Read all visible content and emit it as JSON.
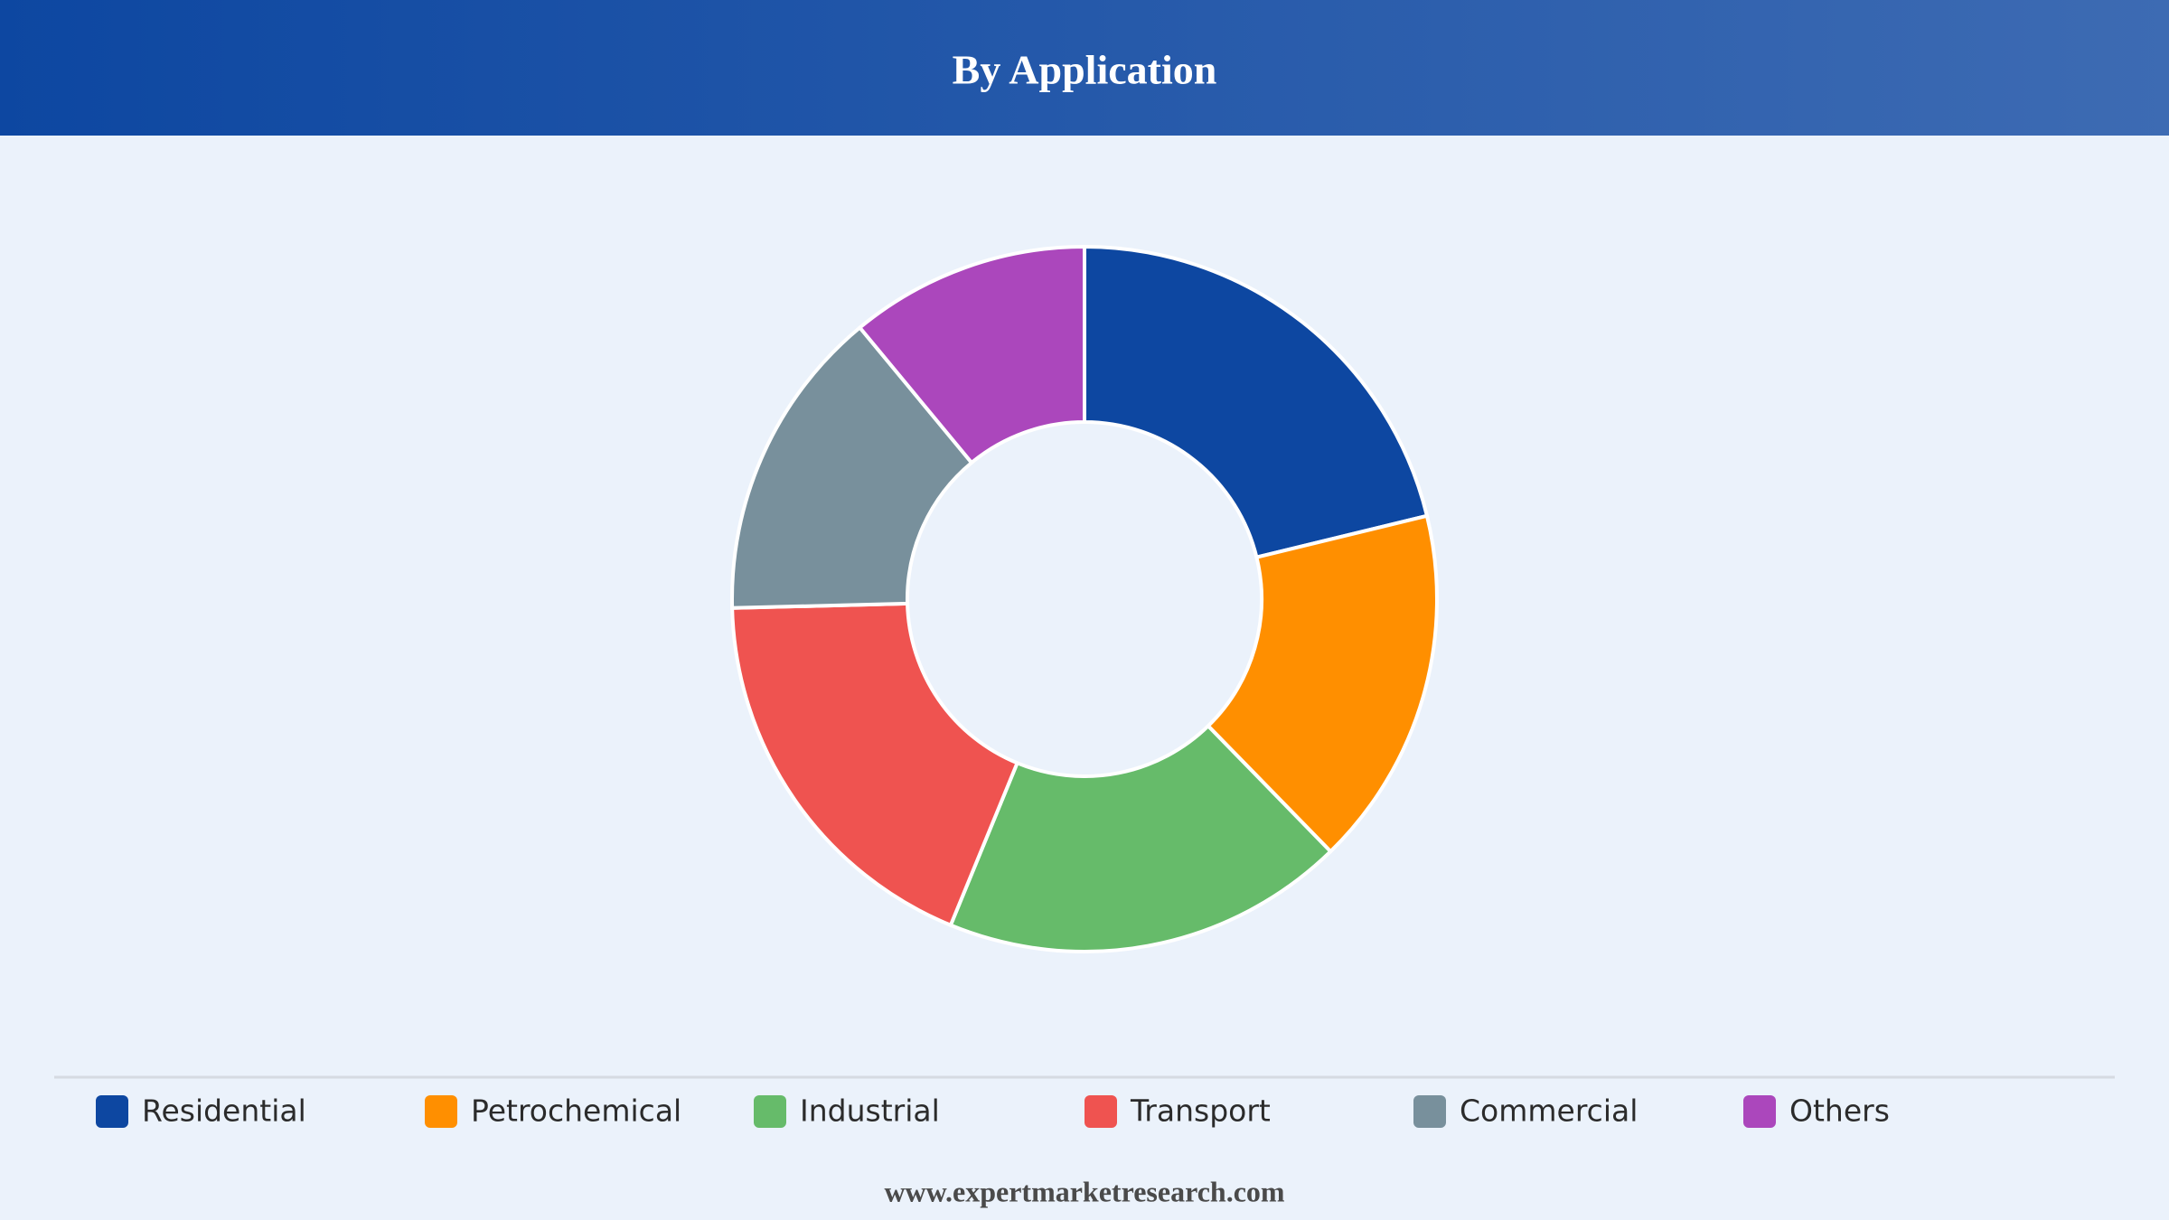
{
  "chart_data": {
    "type": "donut",
    "title": "By Application",
    "categories": [
      "Residential",
      "Petrochemical",
      "Industrial",
      "Transport",
      "Commercial",
      "Others"
    ],
    "values": [
      21.2,
      16.5,
      18.5,
      18.4,
      14.4,
      11.0
    ],
    "colors": [
      "#0d47a1",
      "#ff8f00",
      "#66bb6a",
      "#ef5350",
      "#78909c",
      "#ab47bc"
    ]
  },
  "footer": "www.expertmarketresearch.com"
}
